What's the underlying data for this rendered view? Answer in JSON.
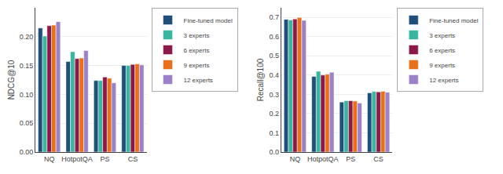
{
  "chart_data": [
    {
      "type": "bar",
      "categories": [
        "NQ",
        "HotpotQA",
        "PS",
        "CS"
      ],
      "ylabel": "NDCG@10",
      "series": [
        {
          "name": "Fine-tuned model",
          "color": "#1f4e79",
          "values": [
            0.215,
            0.157,
            0.124,
            0.15
          ]
        },
        {
          "name": "3 experts",
          "color": "#3ab5a0",
          "values": [
            0.201,
            0.174,
            0.124,
            0.15
          ]
        },
        {
          "name": "6 experts",
          "color": "#8b1a4a",
          "values": [
            0.219,
            0.162,
            0.13,
            0.152
          ]
        },
        {
          "name": "9 experts",
          "color": "#e8701a",
          "values": [
            0.22,
            0.163,
            0.128,
            0.153
          ]
        },
        {
          "name": "12 experts",
          "color": "#9b82c8",
          "values": [
            0.226,
            0.176,
            0.12,
            0.151
          ]
        }
      ],
      "ylim": [
        0.0,
        0.25
      ],
      "yticks": [
        {
          "value": 0,
          "label": "0.00"
        },
        0.05,
        {
          "value": 0.1,
          "label": "0.10"
        },
        0.15,
        {
          "value": 0.2,
          "label": "0.20"
        }
      ],
      "grid": true,
      "legend": "upper right"
    },
    {
      "type": "bar",
      "categories": [
        "NQ",
        "HotpotQA",
        "PS",
        "CS"
      ],
      "ylabel": "Recall@100",
      "series": [
        {
          "name": "Fine-tuned model",
          "color": "#1f4e79",
          "values": [
            0.69,
            0.393,
            0.26,
            0.308
          ]
        },
        {
          "name": "3 experts",
          "color": "#3ab5a0",
          "values": [
            0.687,
            0.42,
            0.267,
            0.315
          ]
        },
        {
          "name": "6 experts",
          "color": "#8b1a4a",
          "values": [
            0.692,
            0.4,
            0.267,
            0.313
          ]
        },
        {
          "name": "9 experts",
          "color": "#e8701a",
          "values": [
            0.7,
            0.405,
            0.265,
            0.316
          ]
        },
        {
          "name": "12 experts",
          "color": "#9b82c8",
          "values": [
            0.685,
            0.415,
            0.255,
            0.311
          ]
        }
      ],
      "ylim": [
        0.0,
        0.75
      ],
      "yticks": [
        {
          "value": 0,
          "label": "0.0"
        },
        0.1,
        0.2,
        0.3,
        0.4,
        0.5,
        0.6,
        0.7
      ],
      "grid": true,
      "legend": "upper right"
    }
  ]
}
